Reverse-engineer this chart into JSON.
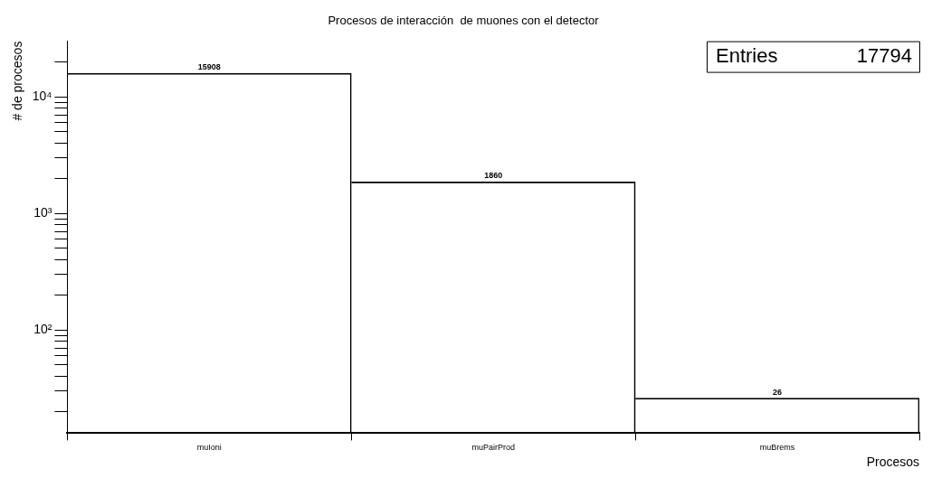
{
  "chart_data": {
    "type": "bar",
    "title": "Procesos de interacción  de muones con el detector",
    "xlabel": "Procesos",
    "ylabel": "# de procesos",
    "categories": [
      "muIoni",
      "muPairProd",
      "muBrems"
    ],
    "values": [
      15908,
      1860,
      26
    ],
    "color": "#000000",
    "data_labels": true,
    "log": "y",
    "grid": false,
    "legend": false,
    "ylim": [
      13,
      30000
    ],
    "yticks": [
      {
        "value": 20,
        "label": null
      },
      {
        "value": 30,
        "label": null
      },
      {
        "value": 40,
        "label": null
      },
      {
        "value": 50,
        "label": null
      },
      {
        "value": 60,
        "label": null
      },
      {
        "value": 70,
        "label": null
      },
      {
        "value": 80,
        "label": null
      },
      {
        "value": 90,
        "label": null
      },
      {
        "value": 100,
        "label": "10²"
      },
      {
        "value": 200,
        "label": null
      },
      {
        "value": 300,
        "label": null
      },
      {
        "value": 400,
        "label": null
      },
      {
        "value": 500,
        "label": null
      },
      {
        "value": 600,
        "label": null
      },
      {
        "value": 700,
        "label": null
      },
      {
        "value": 800,
        "label": null
      },
      {
        "value": 900,
        "label": null
      },
      {
        "value": 1000,
        "label": "10³"
      },
      {
        "value": 2000,
        "label": null
      },
      {
        "value": 3000,
        "label": null
      },
      {
        "value": 4000,
        "label": null
      },
      {
        "value": 5000,
        "label": null
      },
      {
        "value": 6000,
        "label": null
      },
      {
        "value": 7000,
        "label": null
      },
      {
        "value": 8000,
        "label": null
      },
      {
        "value": 9000,
        "label": null
      },
      {
        "value": 10000,
        "label": "10⁴"
      },
      {
        "value": 20000,
        "label": null
      }
    ],
    "annotations": [
      "Entries 17794"
    ]
  }
}
